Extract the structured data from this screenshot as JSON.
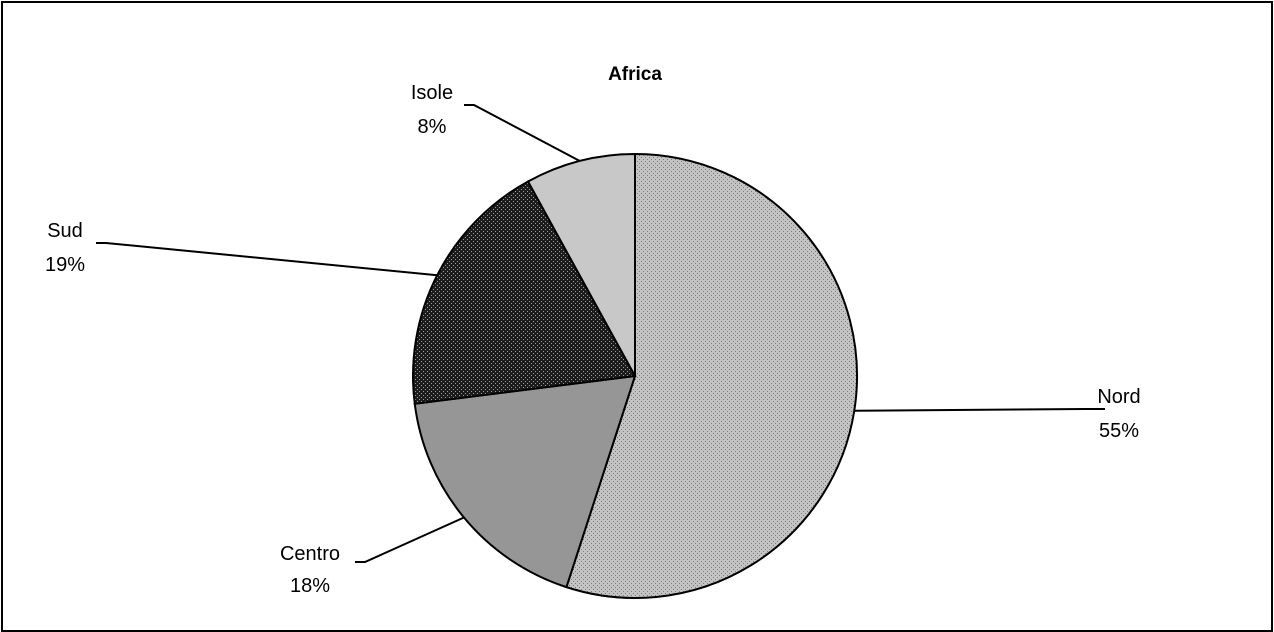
{
  "chart_data": {
    "type": "pie",
    "title": "Africa",
    "slices": [
      {
        "label": "Nord",
        "value": 55,
        "percent_label": "55%",
        "color": "#bdbdbd",
        "pattern": "fine-dots"
      },
      {
        "label": "Centro",
        "value": 18,
        "percent_label": "18%",
        "color": "#969696",
        "pattern": "solid"
      },
      {
        "label": "Sud",
        "value": 19,
        "percent_label": "19%",
        "color": "#3a3a3a",
        "pattern": "coarse-dots"
      },
      {
        "label": "Isole",
        "value": 8,
        "percent_label": "8%",
        "color": "#c8c8c8",
        "pattern": "solid"
      }
    ],
    "start_angle_deg": 0,
    "direction": "clockwise",
    "legend": "none",
    "data_labels": "outside-with-leader-lines"
  }
}
